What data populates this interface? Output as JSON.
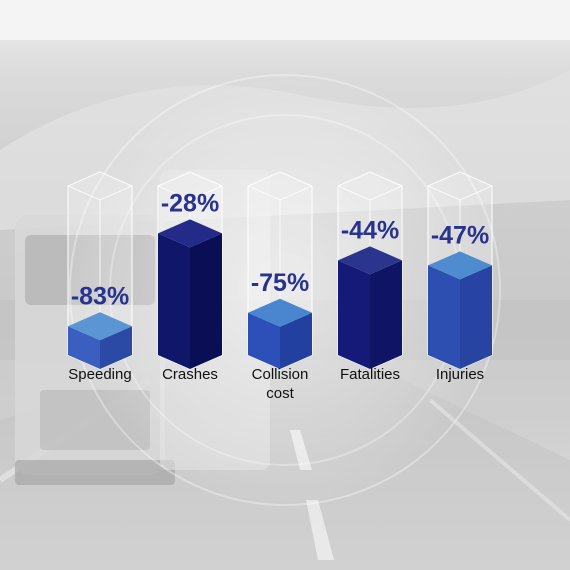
{
  "chart_data": {
    "type": "bar",
    "categories": [
      "Speeding",
      "Crashes",
      "Collision cost",
      "Fatalities",
      "Injuries"
    ],
    "category_lines": [
      [
        "Speeding"
      ],
      [
        "Crashes"
      ],
      [
        "Collision",
        "cost"
      ],
      [
        "Fatalities"
      ],
      [
        "Injuries"
      ]
    ],
    "values": [
      -83,
      -28,
      -75,
      -44,
      -47
    ],
    "value_labels": [
      "-83%",
      "-28%",
      "-75%",
      "-44%",
      "-47%"
    ],
    "title": "",
    "xlabel": "",
    "ylabel": "",
    "bar_style": "3d",
    "grid": false,
    "legend": "none",
    "colors": {
      "front": [
        "#3a5fc0",
        "#10166a",
        "#2c4fb8",
        "#151a78",
        "#2e4fb2"
      ],
      "top": [
        "#5b95d4",
        "#232a88",
        "#4a86cf",
        "#2b358e",
        "#4e8ccf"
      ],
      "side": [
        "#2a4aa5",
        "#0a0f55",
        "#2240a0",
        "#0f1465",
        "#2844a3"
      ],
      "value_text": "#27338f",
      "label_text": "#111111"
    }
  }
}
